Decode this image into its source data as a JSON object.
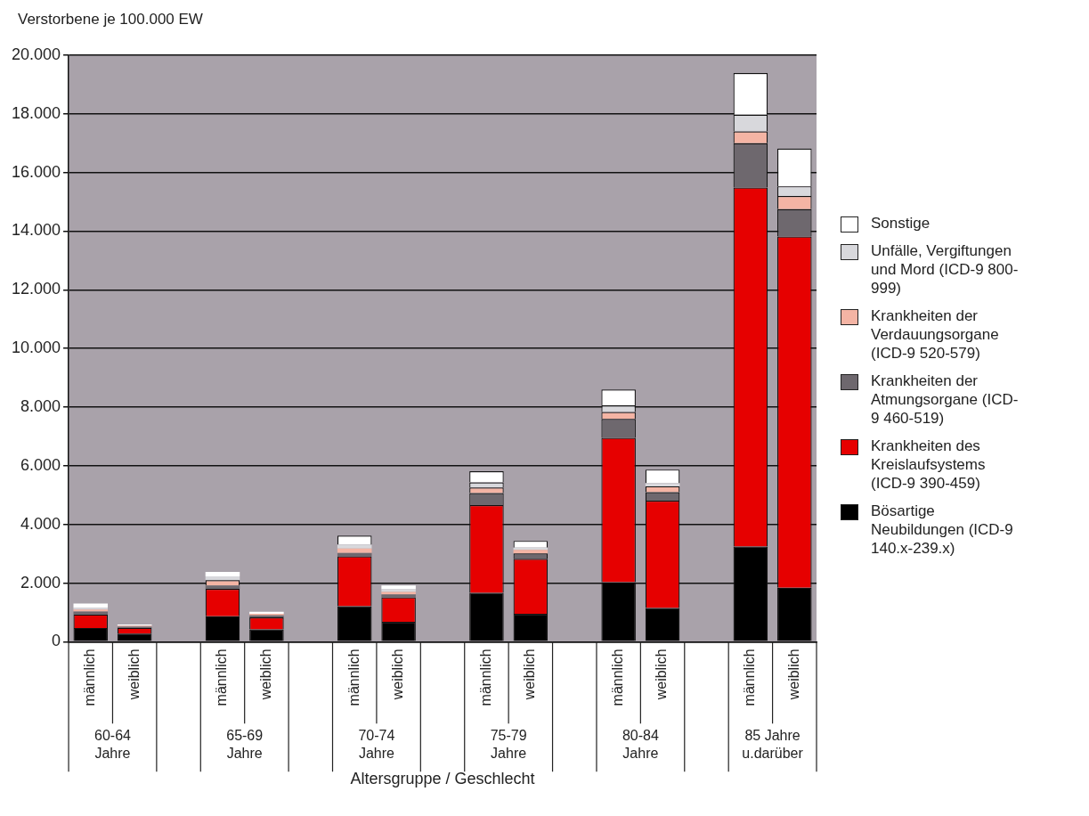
{
  "chart_data": {
    "type": "bar",
    "stacked": true,
    "ylabel": "Verstorbene je 100.000 EW",
    "xlabel": "Altersgruppe / Geschlecht",
    "categories": [
      "männlich",
      "weiblich",
      null,
      "männlich",
      "weiblich",
      null,
      "männlich",
      "weiblich",
      null,
      "männlich",
      "weiblich",
      null,
      "männlich",
      "weiblich",
      null,
      "männlich",
      "weiblich"
    ],
    "annotations": [
      "60-64 Jahre",
      "65-69 Jahre",
      "70-74 Jahre",
      "75-79 Jahre",
      "80-84 Jahre",
      "85 Jahre u.darüber"
    ],
    "series": [
      {
        "name": "Bösartige Neubildungen (ICD-9 140.x-239.x)",
        "color": "#000000",
        "values": [
          470,
          280,
          null,
          870,
          420,
          null,
          1210,
          680,
          null,
          1670,
          950,
          null,
          2030,
          1150,
          null,
          3250,
          1840
        ]
      },
      {
        "name": "Krankheiten des Kreislaufsystems (ICD-9 390-459)",
        "color": "#e60000",
        "values": [
          460,
          190,
          null,
          930,
          410,
          null,
          1700,
          830,
          null,
          2990,
          1880,
          null,
          4920,
          3660,
          null,
          12240,
          11980
        ]
      },
      {
        "name": "Krankheiten der Atmungsorgane (ICD-9 460-519)",
        "color": "#6e686e",
        "values": [
          100,
          40,
          null,
          120,
          70,
          null,
          120,
          100,
          null,
          410,
          180,
          null,
          650,
          290,
          null,
          1510,
          930
        ]
      },
      {
        "name": "Krankheiten der Verdauungsorgane (ICD-9 520-579)",
        "color": "#f4b4a4",
        "values": [
          70,
          30,
          null,
          180,
          50,
          null,
          150,
          90,
          null,
          190,
          120,
          null,
          230,
          200,
          null,
          400,
          450
        ]
      },
      {
        "name": "Unfälle, Vergiftungen und Mord (ICD-9 800-999)",
        "color": "#d8d8dc",
        "values": [
          60,
          20,
          null,
          130,
          null,
          null,
          130,
          90,
          null,
          170,
          80,
          null,
          230,
          100,
          null,
          570,
          330
        ]
      },
      {
        "name": "Sonstige",
        "color": "#ffffff",
        "values": [
          140,
          30,
          null,
          150,
          70,
          null,
          310,
          130,
          null,
          380,
          230,
          null,
          540,
          470,
          null,
          1420,
          1290
        ]
      }
    ],
    "ylim": [
      0,
      20000
    ],
    "yticks": [
      {
        "value": 0,
        "label": "0"
      },
      {
        "value": 2000,
        "label": "2.000"
      },
      {
        "value": 4000,
        "label": "4.000"
      },
      {
        "value": 6000,
        "label": "6.000"
      },
      {
        "value": 8000,
        "label": "8.000"
      },
      {
        "value": 10000,
        "label": "10.000"
      },
      {
        "value": 12000,
        "label": "12.000"
      },
      {
        "value": 14000,
        "label": "14.000"
      },
      {
        "value": 16000,
        "label": "16.000"
      },
      {
        "value": 18000,
        "label": "18.000"
      },
      {
        "value": 20000,
        "label": "20.000"
      }
    ],
    "grid": "y",
    "legend": "right"
  }
}
